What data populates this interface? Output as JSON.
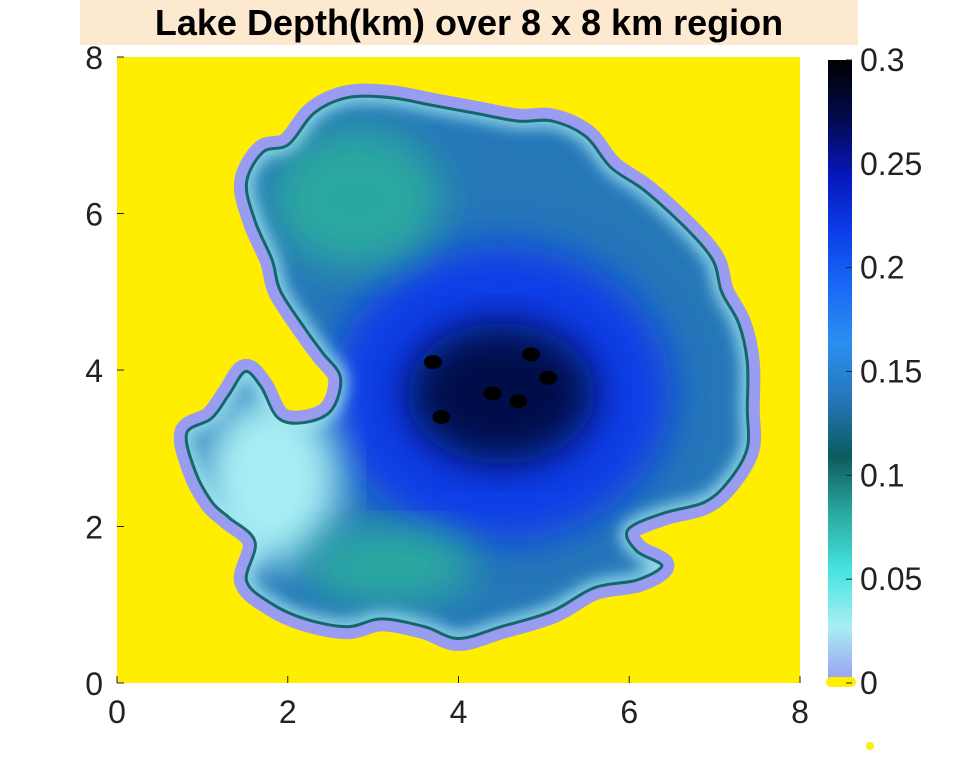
{
  "chart_data": {
    "type": "heatmap",
    "title": "Lake Depth(km) over 8 x 8 km region",
    "xlabel": "",
    "ylabel": "",
    "xlim": [
      0,
      8
    ],
    "ylim": [
      0,
      8
    ],
    "xticks": [
      "0",
      "2",
      "4",
      "6",
      "8"
    ],
    "xtick_values": [
      0,
      2,
      4,
      6,
      8
    ],
    "yticks": [
      "0",
      "2",
      "4",
      "6",
      "8"
    ],
    "ytick_values": [
      0,
      2,
      4,
      6,
      8
    ],
    "background_color": "#ffee00",
    "colorbar": {
      "min": 0,
      "max": 0.3,
      "ticks": [
        "0",
        "0.05",
        "0.1",
        "0.15",
        "0.2",
        "0.25",
        "0.3"
      ],
      "tick_values": [
        0,
        0.05,
        0.1,
        0.15,
        0.2,
        0.25,
        0.3
      ],
      "colors": [
        "#9a9cf2",
        "#a8eef4",
        "#45e3df",
        "#2aa8a0",
        "#0b5b5e",
        "#2577b8",
        "#2a8ff0",
        "#1a6af5",
        "#0a3ce8",
        "#0616b8",
        "#020a4a",
        "#000000"
      ]
    },
    "lake_outline": [
      [
        2.0,
        6.9
      ],
      [
        2.3,
        7.3
      ],
      [
        2.7,
        7.5
      ],
      [
        3.2,
        7.5
      ],
      [
        3.7,
        7.4
      ],
      [
        4.2,
        7.3
      ],
      [
        4.7,
        7.2
      ],
      [
        5.1,
        7.2
      ],
      [
        5.5,
        7.0
      ],
      [
        5.8,
        6.6
      ],
      [
        6.2,
        6.3
      ],
      [
        6.7,
        5.8
      ],
      [
        7.0,
        5.4
      ],
      [
        7.1,
        5.0
      ],
      [
        7.3,
        4.6
      ],
      [
        7.4,
        4.1
      ],
      [
        7.4,
        3.5
      ],
      [
        7.4,
        3.0
      ],
      [
        7.2,
        2.6
      ],
      [
        6.9,
        2.3
      ],
      [
        6.4,
        2.15
      ],
      [
        6.0,
        1.95
      ],
      [
        6.1,
        1.7
      ],
      [
        6.4,
        1.5
      ],
      [
        6.1,
        1.3
      ],
      [
        5.6,
        1.2
      ],
      [
        5.1,
        0.9
      ],
      [
        4.5,
        0.7
      ],
      [
        4.0,
        0.55
      ],
      [
        3.6,
        0.7
      ],
      [
        3.1,
        0.8
      ],
      [
        2.7,
        0.7
      ],
      [
        2.2,
        0.8
      ],
      [
        1.8,
        1.0
      ],
      [
        1.5,
        1.3
      ],
      [
        1.6,
        1.8
      ],
      [
        1.3,
        2.1
      ],
      [
        1.1,
        2.3
      ],
      [
        0.9,
        2.7
      ],
      [
        0.8,
        3.2
      ],
      [
        1.1,
        3.4
      ],
      [
        1.3,
        3.7
      ],
      [
        1.5,
        4.0
      ],
      [
        1.7,
        3.8
      ],
      [
        1.9,
        3.4
      ],
      [
        2.2,
        3.35
      ],
      [
        2.5,
        3.5
      ],
      [
        2.6,
        3.9
      ],
      [
        2.4,
        4.2
      ],
      [
        2.2,
        4.5
      ],
      [
        1.9,
        5.0
      ],
      [
        1.8,
        5.4
      ],
      [
        1.6,
        5.9
      ],
      [
        1.5,
        6.4
      ],
      [
        1.7,
        6.8
      ]
    ],
    "lake_lobes": [
      {
        "x": 4.5,
        "y": 3.7,
        "rx": 2.0,
        "ry": 1.9,
        "depth": 0.22
      },
      {
        "x": 4.5,
        "y": 3.7,
        "rx": 1.1,
        "ry": 0.9,
        "depth": 0.27
      },
      {
        "x": 2.8,
        "y": 6.2,
        "rx": 1.0,
        "ry": 0.9,
        "depth": 0.08
      },
      {
        "x": 1.8,
        "y": 2.6,
        "rx": 0.8,
        "ry": 1.1,
        "depth": 0.04
      },
      {
        "x": 3.2,
        "y": 1.5,
        "rx": 1.0,
        "ry": 0.5,
        "depth": 0.09
      }
    ],
    "deep_spots": [
      {
        "x": 3.7,
        "y": 4.1
      },
      {
        "x": 3.8,
        "y": 3.4
      },
      {
        "x": 4.4,
        "y": 3.7
      },
      {
        "x": 4.7,
        "y": 3.6
      },
      {
        "x": 4.85,
        "y": 4.2
      },
      {
        "x": 5.05,
        "y": 3.9
      }
    ]
  }
}
